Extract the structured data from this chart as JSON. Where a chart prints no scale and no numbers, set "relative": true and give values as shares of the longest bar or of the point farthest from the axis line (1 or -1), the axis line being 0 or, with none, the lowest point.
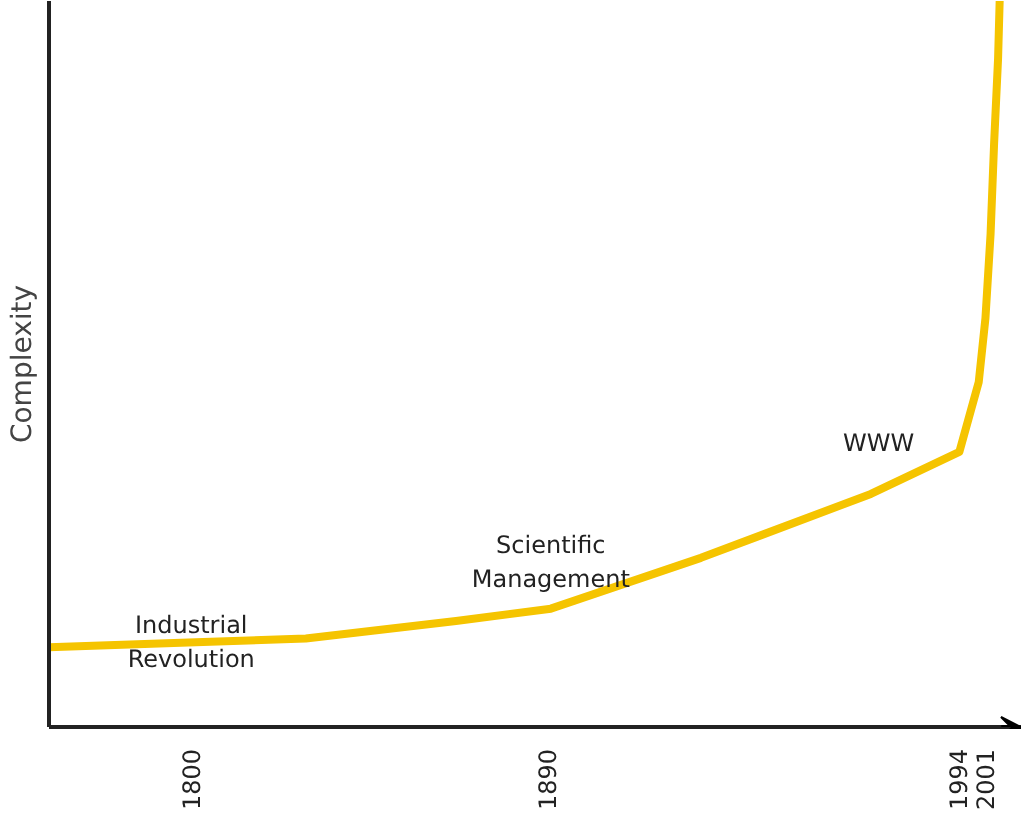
{
  "chart_data": {
    "type": "line",
    "relative": true,
    "ylabel": "Complexity",
    "x": [
      1764,
      1803,
      1829,
      1867,
      1891,
      1929,
      1972,
      1994.4,
      1999.3,
      2001,
      2002.3,
      2003.2,
      2004.2,
      2004.6
    ],
    "series": [
      {
        "color": "#f5c400",
        "values": [
          0.11,
          0.117,
          0.122,
          0.146,
          0.163,
          0.233,
          0.321,
          0.379,
          0.475,
          0.563,
          0.679,
          0.805,
          0.921,
          1
        ]
      }
    ],
    "xlim": [
      1764,
      2010
    ],
    "xticks": [
      1800,
      1890,
      1994,
      2001
    ],
    "grid": false,
    "line_style": "solid",
    "marker": "none",
    "annotations": [
      {
        "text": "Industrial\nRevolution",
        "x": 1800,
        "y": 0.117
      },
      {
        "text": "Scientific\nManagement",
        "x": 1891,
        "y": 0.163
      },
      {
        "text": "WWW",
        "x": 1985,
        "y": 0.35
      }
    ]
  }
}
